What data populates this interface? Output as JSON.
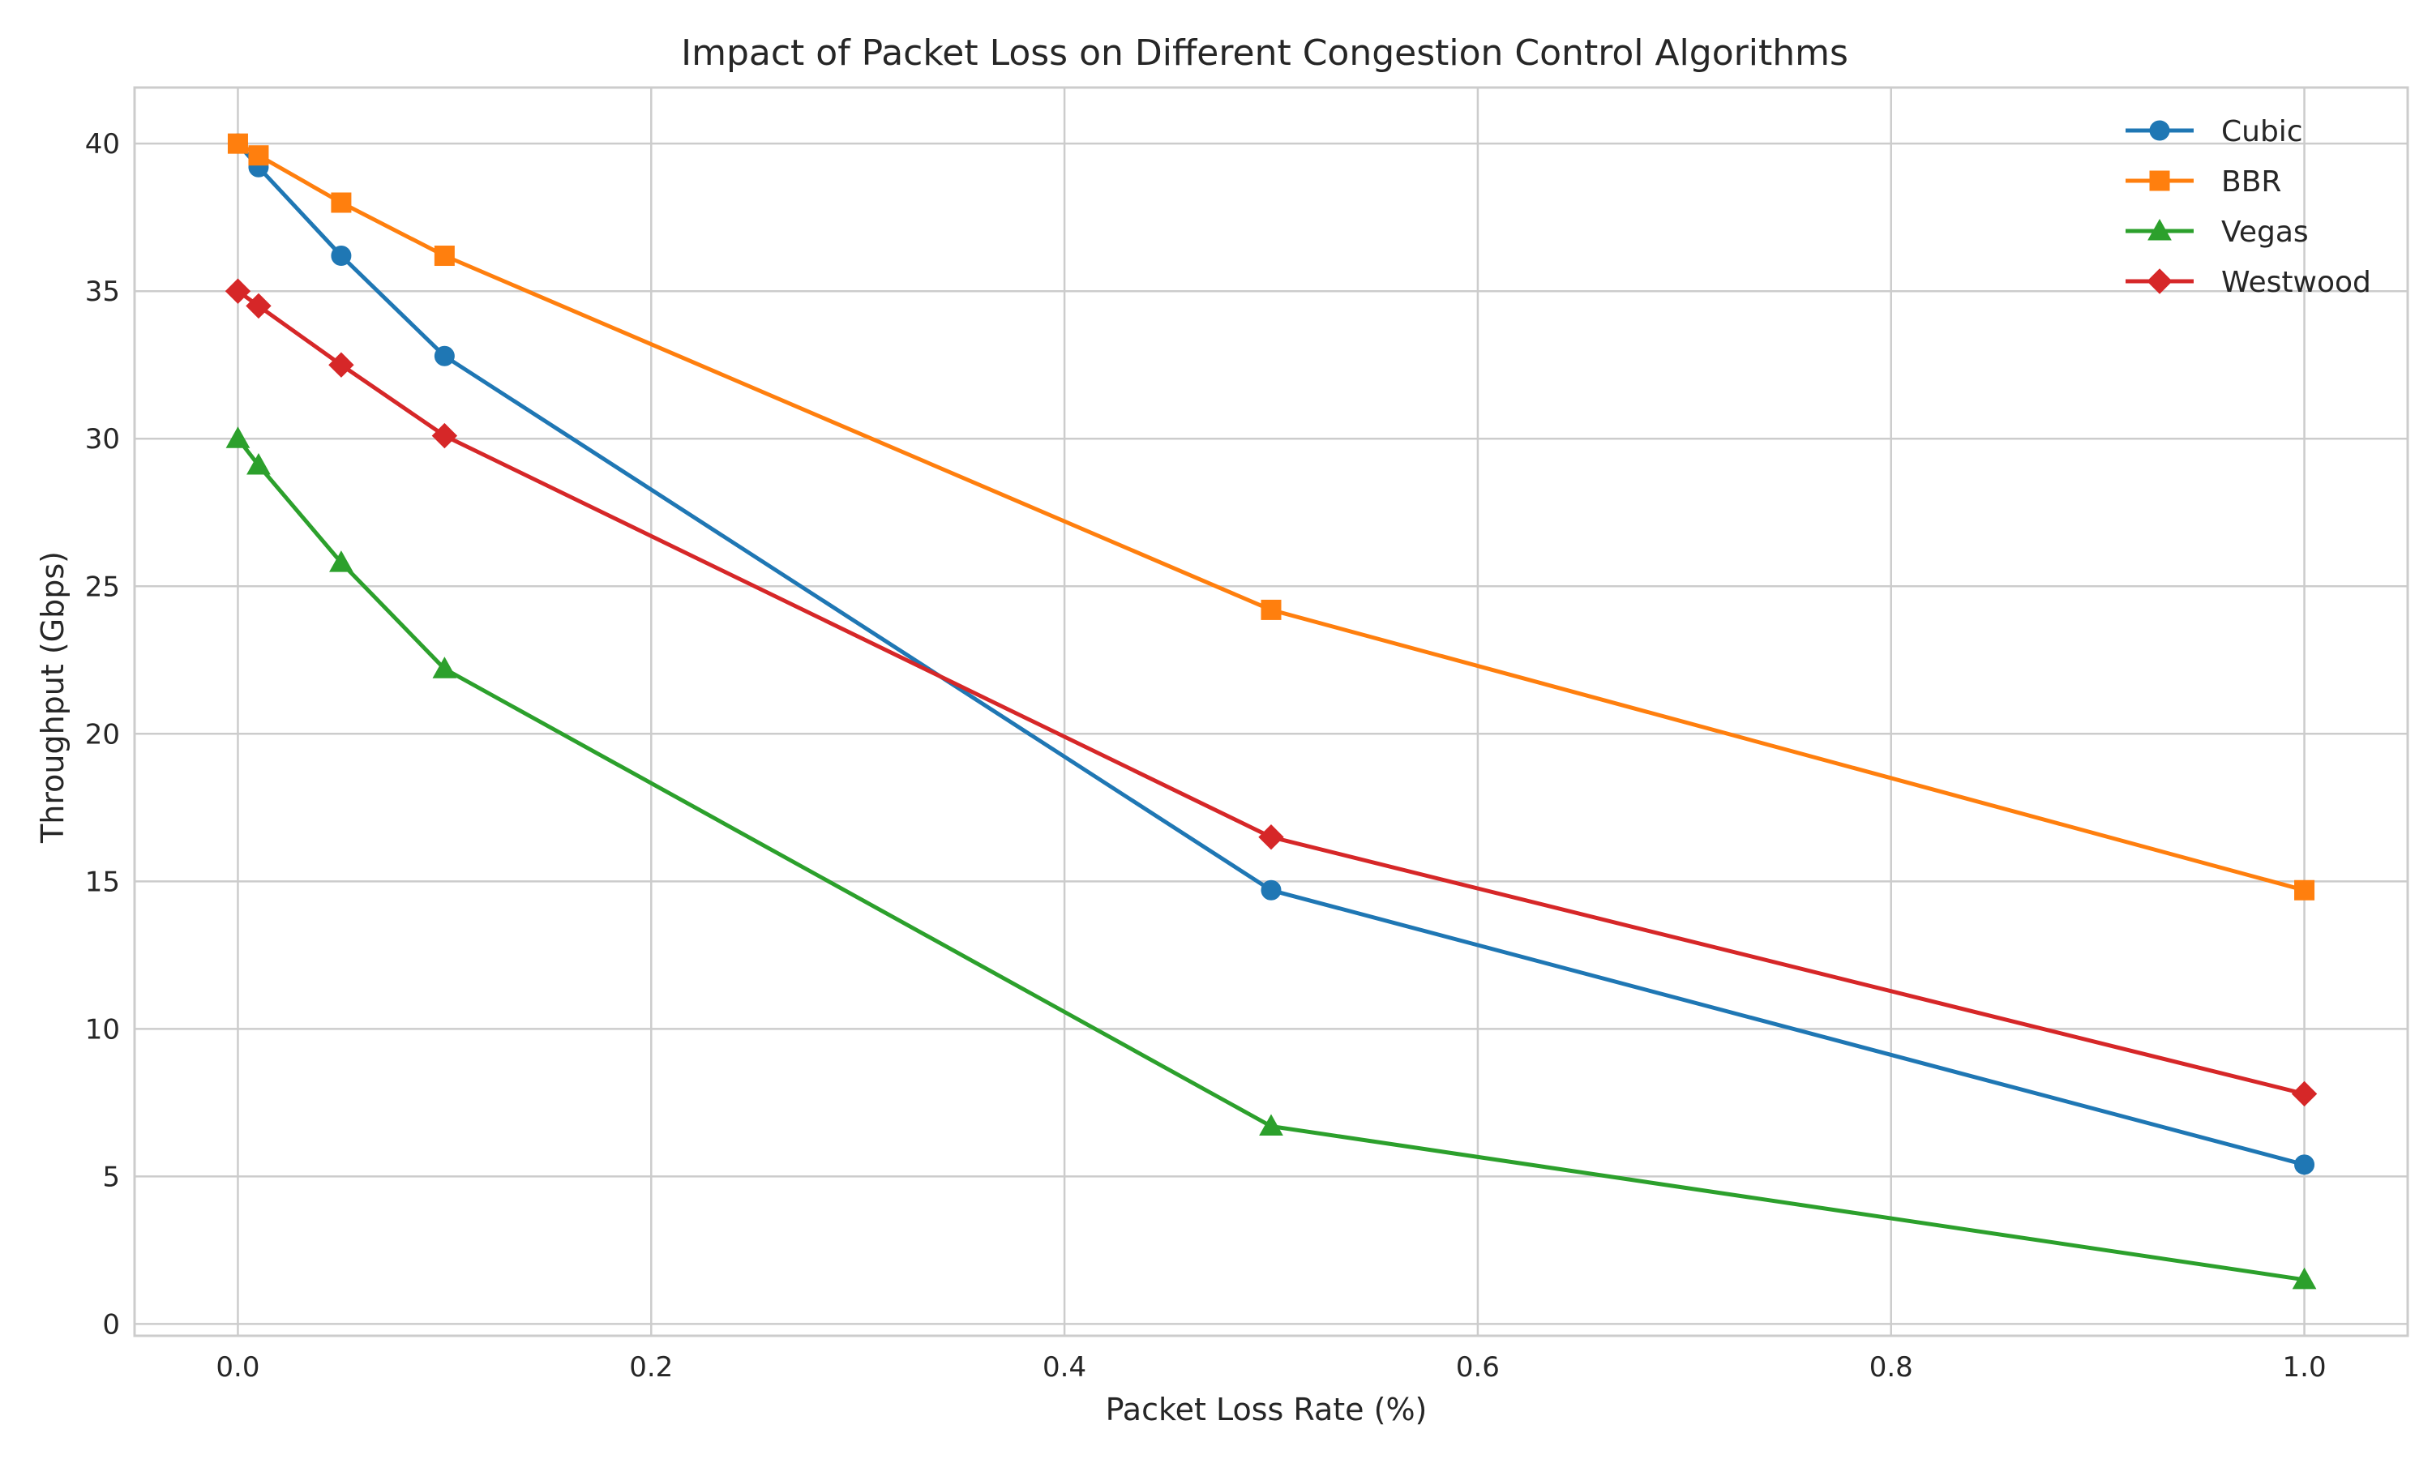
{
  "chart_data": {
    "type": "line",
    "title": "Impact of Packet Loss on Different Congestion Control Algorithms",
    "xlabel": "Packet Loss Rate (%)",
    "ylabel": "Throughput (Gbps)",
    "x": [
      0.0,
      0.01,
      0.05,
      0.1,
      0.5,
      1.0
    ],
    "xlim": [
      -0.05,
      1.05
    ],
    "ylim": [
      -0.4,
      41.9
    ],
    "x_ticks": [
      0.0,
      0.2,
      0.4,
      0.6,
      0.8,
      1.0
    ],
    "x_tick_labels": [
      "0.0",
      "0.2",
      "0.4",
      "0.6",
      "0.8",
      "1.0"
    ],
    "y_ticks": [
      0,
      5,
      10,
      15,
      20,
      25,
      30,
      35,
      40
    ],
    "y_tick_labels": [
      "0",
      "5",
      "10",
      "15",
      "20",
      "25",
      "30",
      "35",
      "40"
    ],
    "grid": true,
    "legend_position": "top-right",
    "series": [
      {
        "name": "Cubic",
        "marker": "circle",
        "color": "#1f77b4",
        "values": [
          40.0,
          39.2,
          36.2,
          32.8,
          14.7,
          5.4
        ]
      },
      {
        "name": "BBR",
        "marker": "square",
        "color": "#ff7f0e",
        "values": [
          40.0,
          39.6,
          38.0,
          36.2,
          24.2,
          14.7
        ]
      },
      {
        "name": "Vegas",
        "marker": "triangle",
        "color": "#2ca02c",
        "values": [
          30.0,
          29.1,
          25.8,
          22.2,
          6.7,
          1.5
        ]
      },
      {
        "name": "Westwood",
        "marker": "diamond",
        "color": "#d62728",
        "values": [
          35.0,
          34.5,
          32.5,
          30.1,
          16.5,
          7.8
        ]
      }
    ]
  }
}
